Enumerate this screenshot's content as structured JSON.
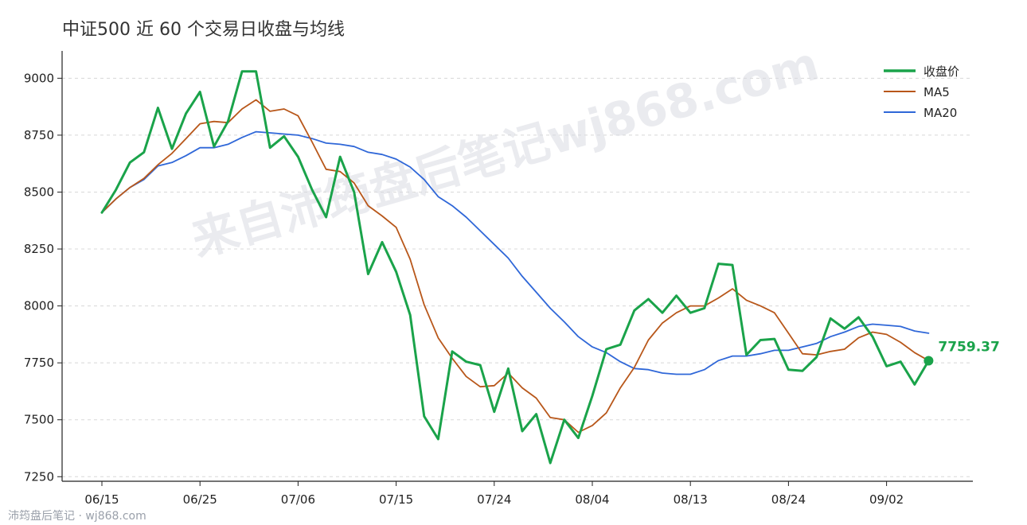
{
  "chart_data": {
    "type": "line",
    "title": "中证500 近 60 个交易日收盘与均线",
    "xlabel": "",
    "ylabel": "",
    "x_tick_labels": [
      "06/15",
      "06/25",
      "07/06",
      "07/15",
      "07/24",
      "08/04",
      "08/13",
      "08/24",
      "09/02"
    ],
    "x_tick_indices": [
      0,
      7,
      14,
      21,
      28,
      35,
      42,
      49,
      56
    ],
    "y_ticks": [
      7250,
      7500,
      7750,
      8000,
      8250,
      8500,
      8750,
      9000
    ],
    "ylim": [
      7230,
      9120
    ],
    "grid": "horizontal dashed",
    "legend_position": "top-right",
    "last_value_label": "7759.37",
    "series": [
      {
        "name": "收盘价",
        "color": "#1aa34a",
        "values": [
          8410,
          8510,
          8630,
          8675,
          8870,
          8690,
          8845,
          8940,
          8700,
          8810,
          9030,
          9030,
          8695,
          8745,
          8655,
          8510,
          8390,
          8655,
          8500,
          8140,
          8280,
          8150,
          7960,
          7515,
          7415,
          7800,
          7755,
          7740,
          7535,
          7725,
          7450,
          7525,
          7310,
          7500,
          7420,
          7605,
          7810,
          7830,
          7980,
          8030,
          7970,
          8045,
          7970,
          7990,
          8185,
          8180,
          7785,
          7850,
          7855,
          7720,
          7715,
          7775,
          7945,
          7900,
          7950,
          7865,
          7735,
          7755,
          7655,
          7759.37
        ]
      },
      {
        "name": "MA5",
        "color": "#b8571a",
        "values": [
          8410,
          8470,
          8520,
          8560,
          8620,
          8670,
          8735,
          8800,
          8810,
          8805,
          8865,
          8905,
          8855,
          8865,
          8835,
          8720,
          8600,
          8590,
          8540,
          8440,
          8395,
          8345,
          8205,
          8005,
          7860,
          7770,
          7690,
          7645,
          7650,
          7705,
          7640,
          7595,
          7510,
          7500,
          7445,
          7475,
          7530,
          7640,
          7730,
          7850,
          7925,
          7970,
          8000,
          8000,
          8035,
          8075,
          8025,
          8000,
          7970,
          7880,
          7790,
          7785,
          7800,
          7810,
          7860,
          7885,
          7875,
          7840,
          7795,
          7760
        ]
      },
      {
        "name": "MA20",
        "color": "#2f67d8",
        "values": [
          8410,
          8470,
          8520,
          8555,
          8615,
          8630,
          8660,
          8695,
          8695,
          8710,
          8740,
          8765,
          8760,
          8755,
          8750,
          8735,
          8715,
          8710,
          8700,
          8675,
          8665,
          8645,
          8610,
          8555,
          8480,
          8440,
          8390,
          8330,
          8270,
          8210,
          8130,
          8060,
          7990,
          7930,
          7865,
          7820,
          7795,
          7755,
          7725,
          7720,
          7705,
          7700,
          7700,
          7720,
          7760,
          7780,
          7780,
          7790,
          7805,
          7805,
          7820,
          7835,
          7865,
          7885,
          7910,
          7920,
          7915,
          7910,
          7890,
          7880
        ]
      }
    ]
  },
  "watermark": "来自沛筠盘后笔记wj868.com",
  "footer_mark": "沛筠盘后笔记 · wj868.com"
}
